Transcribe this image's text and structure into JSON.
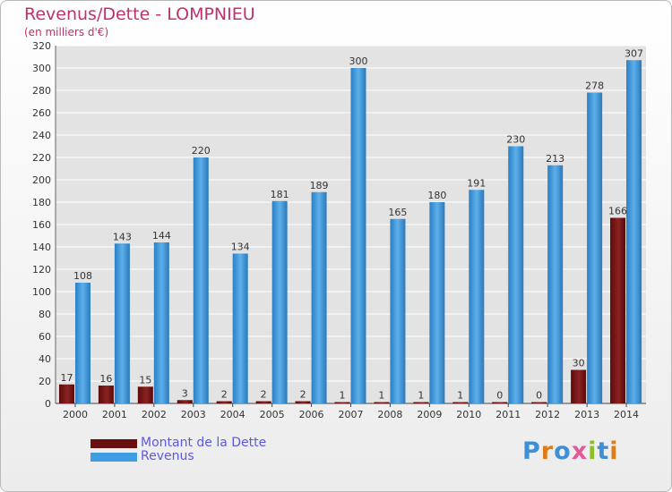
{
  "title": "Revenus/Dette - LOMPNIEU",
  "subtitle": "(en milliers d'€)",
  "logo_text": "Proxiti",
  "chart_data": {
    "type": "bar",
    "categories": [
      "2000",
      "2001",
      "2002",
      "2003",
      "2004",
      "2005",
      "2006",
      "2007",
      "2008",
      "2009",
      "2010",
      "2011",
      "2012",
      "2013",
      "2014"
    ],
    "series": [
      {
        "name": "Montant de la Dette",
        "color": "#7b1515",
        "values": [
          17,
          16,
          15,
          3,
          2,
          2,
          2,
          1,
          1,
          1,
          1,
          0,
          0,
          30,
          166
        ]
      },
      {
        "name": "Revenus",
        "color": "#3e9de3",
        "values": [
          108,
          143,
          144,
          220,
          134,
          181,
          189,
          300,
          165,
          180,
          191,
          230,
          213,
          278,
          307
        ]
      }
    ],
    "ylim": [
      0,
      320
    ],
    "yticks": [
      0,
      20,
      40,
      60,
      80,
      100,
      120,
      140,
      160,
      180,
      200,
      220,
      240,
      260,
      280,
      300,
      320
    ],
    "grid": true,
    "legend_position": "bottom-left"
  }
}
